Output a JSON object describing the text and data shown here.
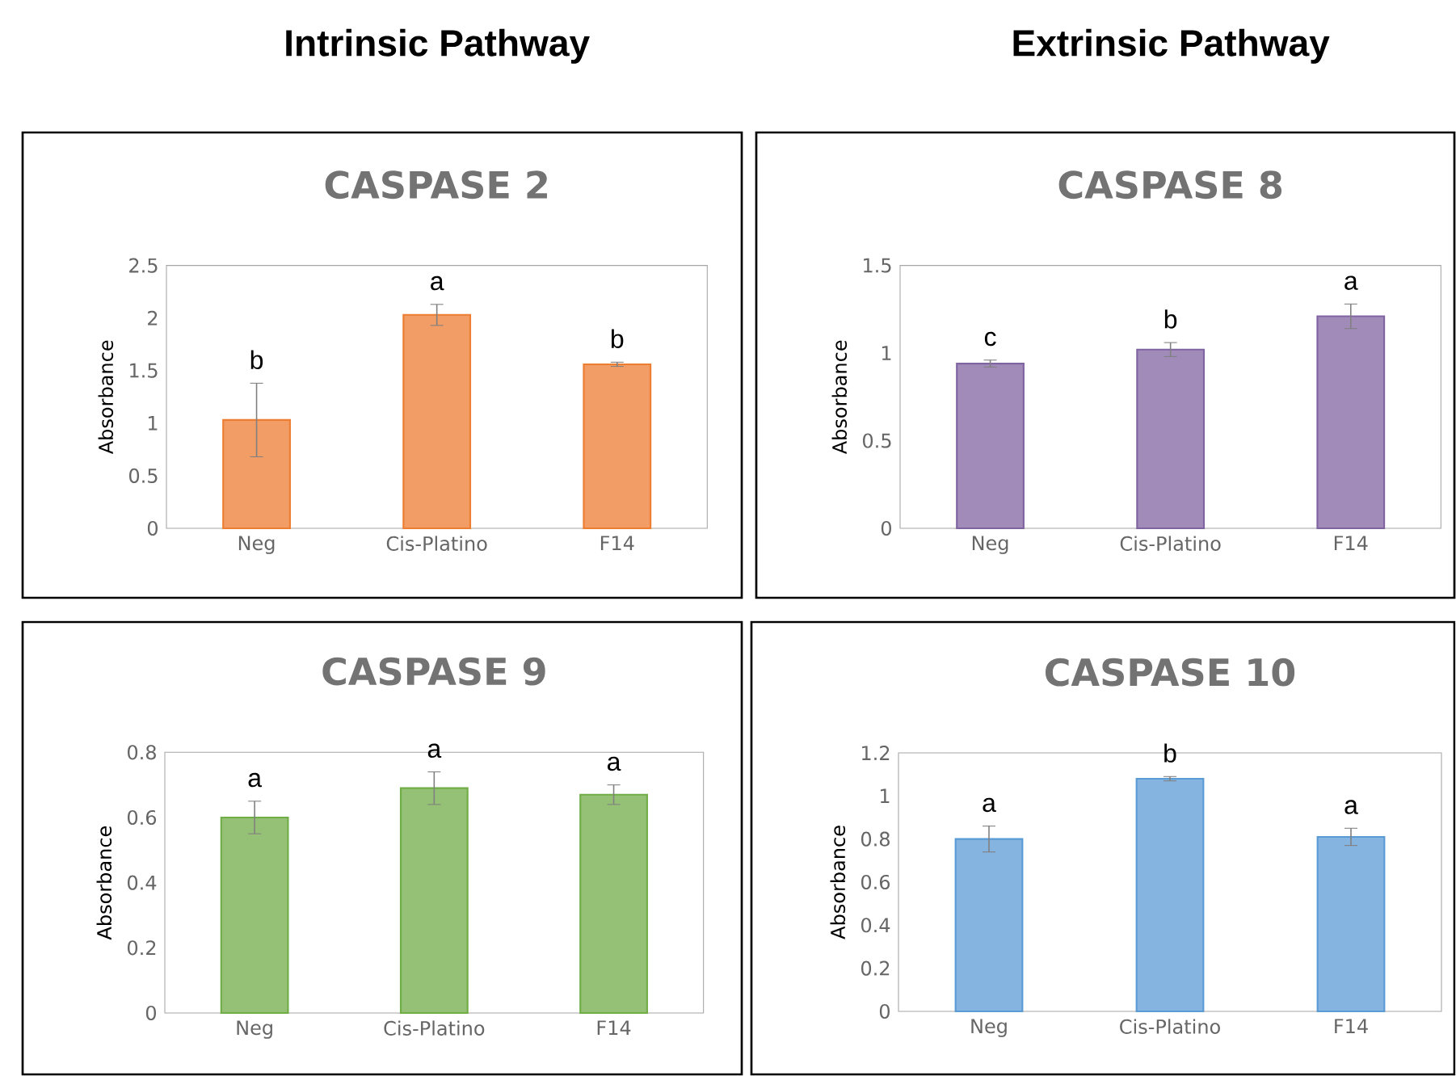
{
  "chart_data": [
    {
      "type": "bar",
      "title": "CASPASE 2",
      "subtitle": "Intrinsic Pathway",
      "ylabel": "Absorbance",
      "categories": [
        "Neg",
        "Cis-Platino",
        "F14"
      ],
      "values": [
        1.03,
        2.03,
        1.56
      ],
      "errors": [
        0.35,
        0.1,
        0.02
      ],
      "color": "#ed7d31",
      "ylim": [
        0,
        2.5
      ],
      "yticks": [
        0,
        0.5,
        1,
        1.5,
        2,
        2.5
      ],
      "annotations": [
        "b",
        "a",
        "b"
      ]
    },
    {
      "type": "bar",
      "title": "CASPASE 8",
      "subtitle": "Extrinsic Pathway",
      "ylabel": "Absorbance",
      "categories": [
        "Neg",
        "Cis-Platino",
        "F14"
      ],
      "values": [
        0.94,
        1.02,
        1.21
      ],
      "errors": [
        0.02,
        0.04,
        0.07
      ],
      "color": "#8064a2",
      "ylim": [
        0,
        1.5
      ],
      "yticks": [
        0,
        0.5,
        1,
        1.5
      ],
      "annotations": [
        "c",
        "b",
        "a"
      ]
    },
    {
      "type": "bar",
      "title": "CASPASE 9",
      "ylabel": "Absorbance",
      "categories": [
        "Neg",
        "Cis-Platino",
        "F14"
      ],
      "values": [
        0.6,
        0.69,
        0.67
      ],
      "errors": [
        0.05,
        0.05,
        0.03
      ],
      "color": "#70ad47",
      "ylim": [
        0,
        0.8
      ],
      "yticks": [
        0,
        0.2,
        0.4,
        0.6,
        0.8
      ],
      "annotations": [
        "a",
        "a",
        "a"
      ]
    },
    {
      "type": "bar",
      "title": "CASPASE 10",
      "ylabel": "Absorbance",
      "categories": [
        "Neg",
        "Cis-Platino",
        "F14"
      ],
      "values": [
        0.8,
        1.08,
        0.81
      ],
      "errors": [
        0.06,
        0.01,
        0.04
      ],
      "color": "#5b9bd5",
      "ylim": [
        0,
        1.2
      ],
      "yticks": [
        0,
        0.2,
        0.4,
        0.6,
        0.8,
        1,
        1.2
      ],
      "annotations": [
        "a",
        "b",
        "a"
      ]
    }
  ]
}
